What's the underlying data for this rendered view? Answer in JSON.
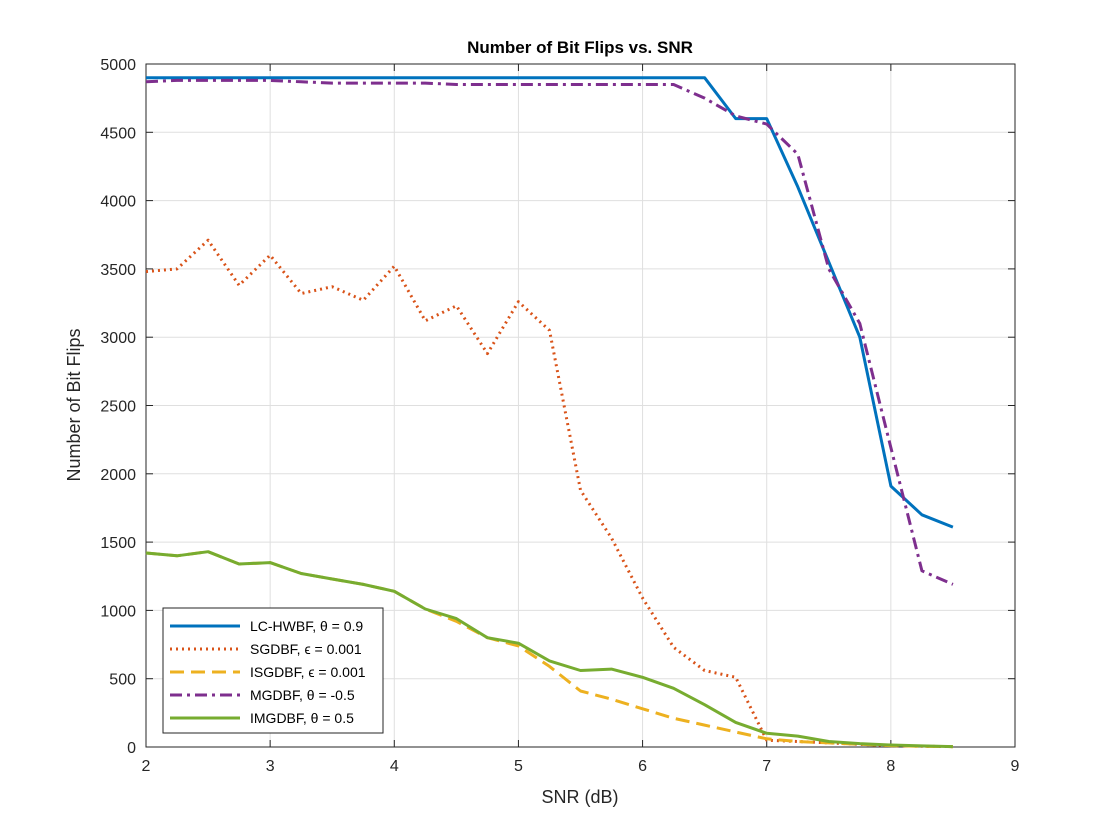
{
  "chart_data": {
    "type": "line",
    "title": "Number of Bit Flips vs. SNR",
    "xlabel": "SNR (dB)",
    "ylabel": "Number of Bit Flips",
    "xlim": [
      2,
      9
    ],
    "ylim": [
      0,
      5000
    ],
    "xticks": [
      2,
      3,
      4,
      5,
      6,
      7,
      8,
      9
    ],
    "yticks": [
      0,
      500,
      1000,
      1500,
      2000,
      2500,
      3000,
      3500,
      4000,
      4500,
      5000
    ],
    "grid": true,
    "legend_position": "bottom-left",
    "x": [
      2,
      2.25,
      2.5,
      2.75,
      3,
      3.25,
      3.5,
      3.75,
      4,
      4.25,
      4.5,
      4.75,
      5,
      5.25,
      5.5,
      5.75,
      6,
      6.25,
      6.5,
      6.75,
      7,
      7.25,
      7.5,
      7.75,
      8,
      8.25,
      8.5
    ],
    "series": [
      {
        "name": "LC-HWBF, θ = 0.9",
        "color": "#0072BD",
        "dash": "solid",
        "values": [
          4900,
          4900,
          4900,
          4900,
          4900,
          4900,
          4900,
          4900,
          4900,
          4900,
          4900,
          4900,
          4900,
          4900,
          4900,
          4900,
          4900,
          4900,
          4900,
          4600,
          4600,
          4100,
          3550,
          3000,
          1910,
          1700,
          1610
        ]
      },
      {
        "name": "SGDBF, ϵ = 0.001",
        "color": "#D95319",
        "dash": "dotted",
        "values": [
          3480,
          3500,
          3710,
          3380,
          3600,
          3320,
          3370,
          3270,
          3520,
          3120,
          3230,
          2880,
          3260,
          3050,
          1880,
          1530,
          1090,
          730,
          560,
          510,
          50,
          40,
          30,
          20,
          10,
          5,
          3
        ]
      },
      {
        "name": "ISGDBF, ϵ = 0.001",
        "color": "#EDB120",
        "dash": "dashed",
        "values": [
          1420,
          1400,
          1430,
          1340,
          1350,
          1270,
          1230,
          1190,
          1140,
          1010,
          920,
          800,
          740,
          590,
          410,
          350,
          280,
          210,
          160,
          110,
          60,
          40,
          30,
          20,
          10,
          5,
          3
        ]
      },
      {
        "name": "MGDBF, θ = -0.5",
        "color": "#7E2F8E",
        "dash": "dashdot",
        "values": [
          4870,
          4880,
          4880,
          4880,
          4880,
          4870,
          4860,
          4860,
          4860,
          4860,
          4850,
          4850,
          4850,
          4850,
          4850,
          4850,
          4850,
          4850,
          4750,
          4620,
          4560,
          4340,
          3500,
          3100,
          2190,
          1290,
          1190
        ]
      },
      {
        "name": "IMGDBF, θ = 0.5",
        "color": "#77AC30",
        "dash": "solid",
        "values": [
          1420,
          1400,
          1430,
          1340,
          1350,
          1270,
          1230,
          1190,
          1140,
          1010,
          940,
          800,
          760,
          630,
          560,
          570,
          510,
          430,
          310,
          180,
          100,
          80,
          40,
          25,
          15,
          8,
          3
        ]
      }
    ]
  }
}
